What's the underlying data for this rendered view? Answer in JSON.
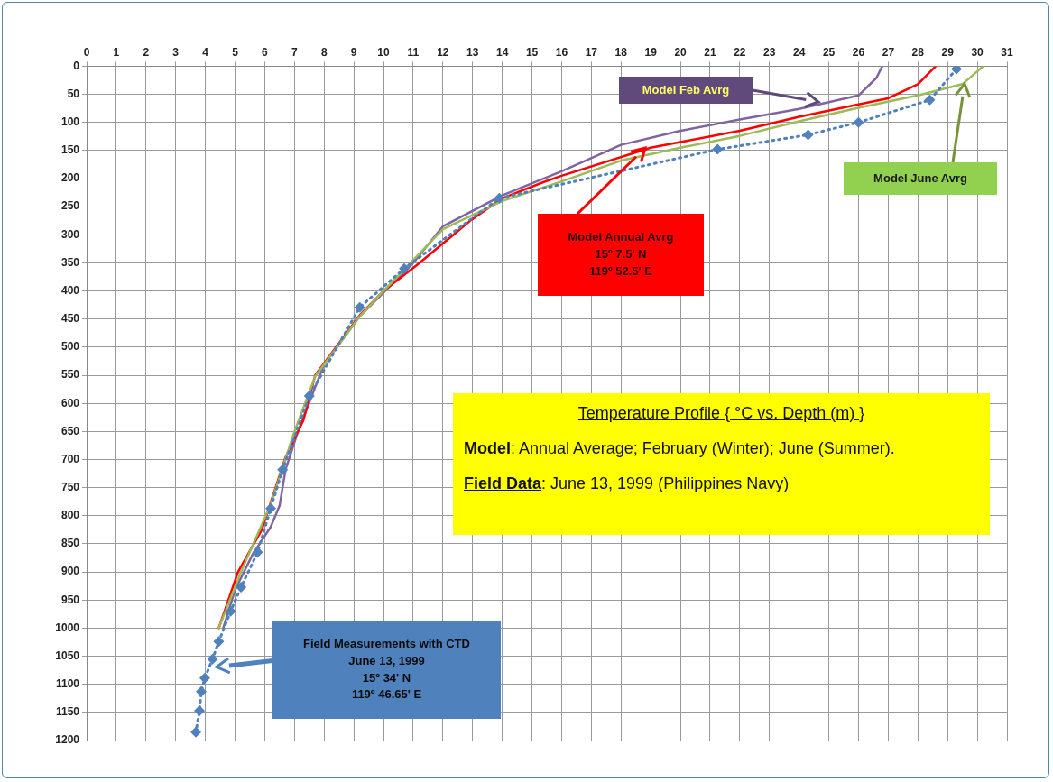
{
  "chart_data": {
    "type": "line",
    "title": "Temperature Profile { °C vs. Depth (m) }",
    "xlim": [
      0,
      31
    ],
    "xticks": [
      0,
      1,
      2,
      3,
      4,
      5,
      6,
      7,
      8,
      9,
      10,
      11,
      12,
      13,
      14,
      15,
      16,
      17,
      18,
      19,
      20,
      21,
      22,
      23,
      24,
      25,
      26,
      27,
      28,
      29,
      30,
      31
    ],
    "ylim": [
      1200,
      0
    ],
    "yticks": [
      0,
      50,
      100,
      150,
      200,
      250,
      300,
      350,
      400,
      450,
      500,
      550,
      600,
      650,
      700,
      750,
      800,
      850,
      900,
      950,
      1000,
      1050,
      1100,
      1150,
      1200
    ],
    "grid": true,
    "line_style": "solid",
    "marker": "none",
    "series": [
      {
        "color": "#8064a2",
        "x": [
          26.8,
          26.6,
          26,
          24,
          22,
          20,
          18,
          16,
          14,
          12,
          11,
          9.2,
          8,
          7.1,
          6.7,
          6.5,
          6.2,
          5.6,
          5,
          4.6
        ],
        "values": [
          0,
          21,
          52,
          76,
          95,
          115,
          140,
          187,
          230,
          285,
          350,
          445,
          530,
          653,
          718,
          782,
          820,
          868,
          932,
          1000
        ]
      },
      {
        "color": "#ff0000",
        "x": [
          28.6,
          28,
          27,
          26,
          24,
          22,
          20,
          19,
          16,
          15.4,
          14,
          12.9,
          11.1,
          10,
          9.2,
          7.7,
          7.3,
          6.7,
          5.9,
          5.1,
          4.45
        ],
        "values": [
          0,
          32,
          57,
          68,
          90,
          115,
          135,
          145,
          195,
          206,
          235,
          276,
          355,
          400,
          443,
          550,
          630,
          696,
          825,
          900,
          1000
        ]
      },
      {
        "color": "#9bbb59",
        "x": [
          30.2,
          29.5,
          28,
          26,
          24,
          22,
          20,
          18,
          16,
          14,
          12,
          10,
          9.2,
          7.7,
          7,
          6.2,
          5.2,
          4.45
        ],
        "values": [
          0,
          32,
          52,
          74,
          98,
          124,
          145,
          168,
          205,
          240,
          290,
          400,
          445,
          552,
          650,
          780,
          900,
          1000
        ]
      },
      {
        "color": "#4f81bd",
        "marker": "diamond",
        "line_style": "dotted",
        "x": [
          29.3,
          28.4,
          26,
          24.3,
          21.25,
          13.9,
          10.7,
          9.2,
          7.5,
          6.6,
          6.2,
          5.76,
          5.2,
          4.85,
          4.45,
          4.24,
          3.98,
          3.86,
          3.8,
          3.68
        ],
        "values": [
          5,
          60,
          100,
          122,
          148,
          235,
          360,
          429,
          587,
          718,
          787,
          865,
          927,
          970,
          1024,
          1055,
          1089,
          1113,
          1147,
          1185
        ]
      }
    ],
    "annotations": [
      "Model Feb Avrg",
      "Model June Avrg",
      "Model Annual Avrg\n15º 7.5' N\n119º 52.5' E",
      "Field Measurements with CTD\nJune 13, 1999\n15º 34' N\n119º 46.65' E",
      "Model: Annual Average; February (Winter); June (Summer).",
      "Field Data: June 13, 1999 (Philippines Navy)"
    ]
  }
}
